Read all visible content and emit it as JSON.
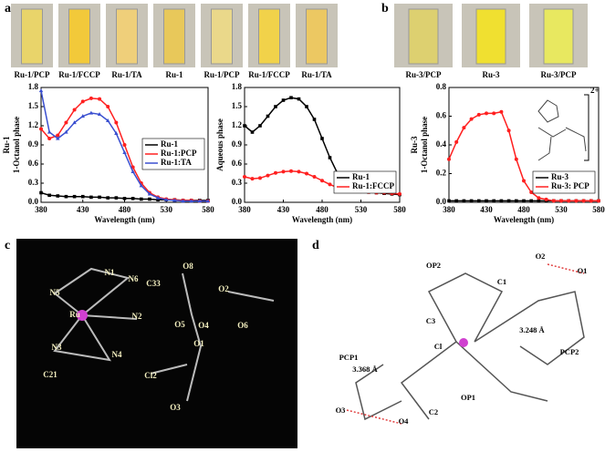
{
  "panels": {
    "a": {
      "letter": "a",
      "photos": [
        "Ru-1/PCP",
        "Ru-1/FCCP",
        "Ru-1/TA",
        "Ru-1",
        "Ru-1/PCP",
        "Ru-1/FCCP",
        "Ru-1/TA"
      ]
    },
    "b": {
      "letter": "b",
      "photos": [
        "Ru-3/PCP",
        "Ru-3",
        "Ru-3/PCP"
      ]
    },
    "c": {
      "letter": "c",
      "labels": [
        "C33",
        "O8",
        "N1",
        "N6",
        "O2",
        "N5",
        "Ru",
        "N2",
        "O5",
        "O4",
        "O6",
        "N3",
        "N4",
        "O1",
        "C21",
        "Cl2",
        "O3"
      ]
    },
    "d": {
      "letter": "d",
      "labels": [
        "OP2",
        "C1",
        "O2",
        "O1",
        "C3",
        "3.248 Å",
        "PCP2",
        "Cl",
        "PCP1",
        "3.368 Å",
        "OP1",
        "O3",
        "O4",
        "C2"
      ]
    }
  },
  "chart_data": [
    {
      "type": "line",
      "compound": "Ru-1",
      "ylabel": "1-Octanol phase",
      "xlabel": "Wavelength (nm)",
      "legend": "center right",
      "x": [
        380,
        390,
        400,
        410,
        420,
        430,
        440,
        450,
        460,
        470,
        480,
        490,
        500,
        510,
        520,
        530,
        540,
        550,
        560,
        570,
        580
      ],
      "xlim": [
        380,
        580
      ],
      "xticks": [
        380,
        430,
        480,
        530,
        580
      ],
      "ylim": [
        0,
        1.8
      ],
      "yticks": [
        {
          "value": 0,
          "label": "0.0"
        },
        0.3,
        0.6,
        0.9,
        1.2,
        1.5,
        1.8
      ],
      "series": [
        {
          "name": "Ru-1",
          "color": "#000000",
          "marker": "square",
          "values": [
            0.15,
            0.11,
            0.1,
            0.09,
            0.09,
            0.09,
            0.08,
            0.08,
            0.07,
            0.07,
            0.06,
            0.06,
            0.05,
            0.05,
            0.04,
            0.04,
            0.04,
            0.03,
            0.03,
            0.03,
            0.03
          ]
        },
        {
          "name": "Ru-1:PCP",
          "color": "#ff2020",
          "marker": "circle",
          "values": [
            1.15,
            1.0,
            1.05,
            1.25,
            1.45,
            1.58,
            1.63,
            1.62,
            1.5,
            1.25,
            0.9,
            0.55,
            0.3,
            0.15,
            0.08,
            0.05,
            0.04,
            0.03,
            0.03,
            0.02,
            0.02
          ]
        },
        {
          "name": "Ru-1:TA",
          "color": "#3a4fd0",
          "marker": "triangle",
          "values": [
            1.75,
            1.1,
            1.0,
            1.1,
            1.25,
            1.35,
            1.4,
            1.38,
            1.28,
            1.08,
            0.78,
            0.48,
            0.26,
            0.13,
            0.07,
            0.04,
            0.03,
            0.02,
            0.02,
            0.02,
            0.02
          ]
        }
      ]
    },
    {
      "type": "line",
      "ylabel": "Aqueous phase",
      "xlabel": "Wavelength (nm)",
      "legend": "lower right",
      "x": [
        380,
        390,
        400,
        410,
        420,
        430,
        440,
        450,
        460,
        470,
        480,
        490,
        500,
        510,
        520,
        530,
        540,
        550,
        560,
        570,
        580
      ],
      "xlim": [
        380,
        580
      ],
      "xticks": [
        380,
        430,
        480,
        530,
        580
      ],
      "ylim": [
        0,
        1.8
      ],
      "yticks": [
        {
          "value": 0,
          "label": "0.0"
        },
        0.3,
        0.6,
        0.9,
        1.2,
        1.5,
        1.8
      ],
      "series": [
        {
          "name": "Ru-1",
          "color": "#000000",
          "marker": "square",
          "values": [
            1.2,
            1.1,
            1.2,
            1.35,
            1.5,
            1.6,
            1.64,
            1.62,
            1.5,
            1.3,
            1.0,
            0.7,
            0.45,
            0.3,
            0.22,
            0.18,
            0.16,
            0.15,
            0.14,
            0.13,
            0.12
          ]
        },
        {
          "name": "Ru-1:FCCP",
          "color": "#ff2020",
          "marker": "circle",
          "values": [
            0.4,
            0.37,
            0.38,
            0.42,
            0.46,
            0.48,
            0.49,
            0.48,
            0.45,
            0.4,
            0.34,
            0.28,
            0.23,
            0.2,
            0.18,
            0.17,
            0.16,
            0.15,
            0.15,
            0.14,
            0.13
          ]
        }
      ]
    },
    {
      "type": "line",
      "compound": "Ru-3",
      "ylabel": "1-Octanol phase",
      "xlabel": "Wavelength (nm)",
      "legend": "lower right",
      "charge": "2+",
      "x": [
        380,
        390,
        400,
        410,
        420,
        430,
        440,
        450,
        460,
        470,
        480,
        490,
        500,
        510,
        520,
        530,
        540,
        550,
        560,
        570,
        580
      ],
      "xlim": [
        380,
        580
      ],
      "xticks": [
        380,
        430,
        480,
        530,
        580
      ],
      "ylim": [
        0,
        0.8
      ],
      "yticks": [
        {
          "value": 0,
          "label": "0.0"
        },
        0.2,
        0.4,
        0.6,
        0.8
      ],
      "series": [
        {
          "name": "Ru-3",
          "color": "#000000",
          "marker": "square",
          "values": [
            0.01,
            0.01,
            0.01,
            0.01,
            0.01,
            0.01,
            0.01,
            0.01,
            0.01,
            0.01,
            0.01,
            0.01,
            0.01,
            0.01,
            0.01,
            0.01,
            0.01,
            0.01,
            0.01,
            0.01,
            0.01
          ]
        },
        {
          "name": "Ru-3: PCP",
          "color": "#ff2020",
          "marker": "circle",
          "values": [
            0.3,
            0.42,
            0.52,
            0.58,
            0.61,
            0.62,
            0.62,
            0.63,
            0.5,
            0.3,
            0.15,
            0.07,
            0.03,
            0.02,
            0.01,
            0.01,
            0.01,
            0.01,
            0.01,
            0.01,
            0.01
          ]
        }
      ]
    }
  ]
}
